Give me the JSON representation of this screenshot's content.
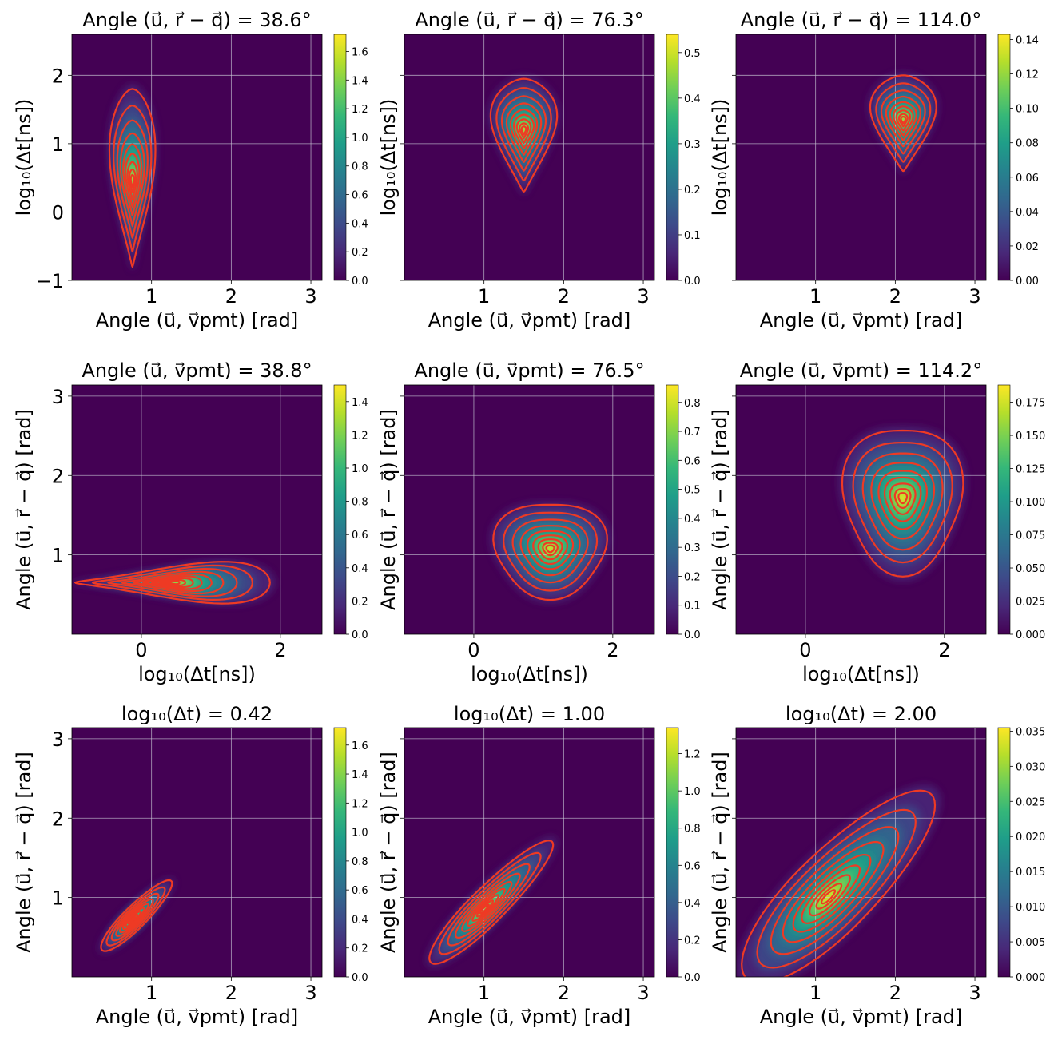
{
  "figure": {
    "description_hidden": false
  },
  "colors": {
    "contour": "#ee3a24",
    "grid": "#c9c9d6",
    "viridis": [
      "#440154",
      "#482878",
      "#3e4989",
      "#31688e",
      "#26828e",
      "#1f9e89",
      "#35b779",
      "#6ece58",
      "#b5de2b",
      "#fde725"
    ]
  },
  "chart_data": [
    {
      "type": "heatmap",
      "id": "p1",
      "title": "Angle (u⃗, r⃗ − q⃗) = 38.6°",
      "xlabel": "Angle (u⃗, v⃗pmt) [rad]",
      "ylabel": "log₁₀(Δt[ns])",
      "xlim": [
        0,
        3.14
      ],
      "ylim": [
        -1,
        2.6
      ],
      "xticks": [
        1,
        2,
        3
      ],
      "yticks": [
        -1,
        0,
        1,
        2
      ],
      "ytick_labels_shown": true,
      "colorbar": {
        "min": 0.0,
        "max": 1.72,
        "ticks": [
          "0.0",
          "0.2",
          "0.4",
          "0.6",
          "0.8",
          "1.0",
          "1.2",
          "1.4",
          "1.6"
        ],
        "tick_values": [
          0,
          0.2,
          0.4,
          0.6,
          0.8,
          1.0,
          1.2,
          1.4,
          1.6
        ]
      },
      "peak": {
        "x": 0.76,
        "y": 0.45
      },
      "blob": {
        "shape": "teardrop",
        "x_spread_top": 0.42,
        "x_spread_bottom": 0.05,
        "y_bottom": -0.8,
        "y_top": 1.8
      }
    },
    {
      "type": "heatmap",
      "id": "p2",
      "title": "Angle (u⃗, r⃗ − q⃗) = 76.3°",
      "xlabel": "Angle (u⃗, v⃗pmt) [rad]",
      "ylabel": "log₁₀(Δt[ns])",
      "xlim": [
        0,
        3.14
      ],
      "ylim": [
        -1,
        2.6
      ],
      "xticks": [
        1,
        2,
        3
      ],
      "yticks": [
        -1,
        0,
        1,
        2
      ],
      "ytick_labels_shown": false,
      "colorbar": {
        "min": 0.0,
        "max": 0.54,
        "ticks": [
          "0.0",
          "0.1",
          "0.2",
          "0.3",
          "0.4",
          "0.5"
        ],
        "tick_values": [
          0,
          0.1,
          0.2,
          0.3,
          0.4,
          0.5
        ]
      },
      "peak": {
        "x": 1.5,
        "y": 1.2
      },
      "blob": {
        "shape": "teardrop",
        "x_spread_top": 0.57,
        "x_spread_bottom": 0.1,
        "y_bottom": 0.3,
        "y_top": 1.95
      }
    },
    {
      "type": "heatmap",
      "id": "p3",
      "title": "Angle (u⃗, r⃗ − q⃗) = 114.0°",
      "xlabel": "Angle (u⃗, v⃗pmt) [rad]",
      "ylabel": "log₁₀(Δt[ns])",
      "xlim": [
        0,
        3.14
      ],
      "ylim": [
        -1,
        2.6
      ],
      "xticks": [
        1,
        2,
        3
      ],
      "yticks": [
        -1,
        0,
        1,
        2
      ],
      "ytick_labels_shown": false,
      "colorbar": {
        "min": 0.0,
        "max": 0.143,
        "ticks": [
          "0.00",
          "0.02",
          "0.04",
          "0.06",
          "0.08",
          "0.10",
          "0.12",
          "0.14"
        ],
        "tick_values": [
          0,
          0.02,
          0.04,
          0.06,
          0.08,
          0.1,
          0.12,
          0.14
        ]
      },
      "peak": {
        "x": 2.1,
        "y": 1.35
      },
      "blob": {
        "shape": "teardrop",
        "x_spread_top": 0.57,
        "x_spread_bottom": 0.1,
        "y_bottom": 0.6,
        "y_top": 2.0
      }
    },
    {
      "type": "heatmap",
      "id": "p4",
      "title": "Angle (u⃗, v⃗pmt) = 38.8°",
      "xlabel": "log₁₀(Δt[ns])",
      "ylabel": "Angle (u⃗, r⃗ − q⃗) [rad]",
      "xlim": [
        -1,
        2.6
      ],
      "ylim": [
        0,
        3.14
      ],
      "xticks": [
        0,
        2
      ],
      "yticks": [
        1,
        2,
        3
      ],
      "ytick_labels_shown": true,
      "colorbar": {
        "min": 0.0,
        "max": 1.5,
        "ticks": [
          "0.0",
          "0.2",
          "0.4",
          "0.6",
          "0.8",
          "1.0",
          "1.2",
          "1.4"
        ],
        "tick_values": [
          0,
          0.2,
          0.4,
          0.6,
          0.8,
          1.0,
          1.2,
          1.4
        ]
      },
      "peak": {
        "x": 0.45,
        "y": 0.65
      },
      "blob": {
        "shape": "horizontal_wedge",
        "x_left": -0.95,
        "x_right": 1.85,
        "y_spread_right": 0.42,
        "y_spread_left": 0.05
      }
    },
    {
      "type": "heatmap",
      "id": "p5",
      "title": "Angle (u⃗, v⃗pmt) = 76.5°",
      "xlabel": "log₁₀(Δt[ns])",
      "ylabel": "Angle (u⃗, r⃗ − q⃗) [rad]",
      "xlim": [
        -1,
        2.6
      ],
      "ylim": [
        0,
        3.14
      ],
      "xticks": [
        0,
        2
      ],
      "yticks": [
        1,
        2,
        3
      ],
      "ytick_labels_shown": false,
      "colorbar": {
        "min": 0.0,
        "max": 0.86,
        "ticks": [
          "0.0",
          "0.1",
          "0.2",
          "0.3",
          "0.4",
          "0.5",
          "0.6",
          "0.7",
          "0.8"
        ],
        "tick_values": [
          0,
          0.1,
          0.2,
          0.3,
          0.4,
          0.5,
          0.6,
          0.7,
          0.8
        ]
      },
      "peak": {
        "x": 1.1,
        "y": 1.08
      },
      "blob": {
        "shape": "ellipse",
        "x_spread": 0.8,
        "y_spread": 0.6
      }
    },
    {
      "type": "heatmap",
      "id": "p6",
      "title": "Angle (u⃗, v⃗pmt) = 114.2°",
      "xlabel": "log₁₀(Δt[ns])",
      "ylabel": "Angle (u⃗, r⃗ − q⃗) [rad]",
      "xlim": [
        -1,
        2.6
      ],
      "ylim": [
        0,
        3.14
      ],
      "xticks": [
        0,
        2
      ],
      "yticks": [
        1,
        2,
        3
      ],
      "ytick_labels_shown": false,
      "colorbar": {
        "min": 0.0,
        "max": 0.188,
        "ticks": [
          "0.000",
          "0.025",
          "0.050",
          "0.075",
          "0.100",
          "0.125",
          "0.150",
          "0.175"
        ],
        "tick_values": [
          0,
          0.025,
          0.05,
          0.075,
          0.1,
          0.125,
          0.15,
          0.175
        ]
      },
      "peak": {
        "x": 1.4,
        "y": 1.72
      },
      "blob": {
        "shape": "ellipse",
        "x_spread": 0.85,
        "y_spread": 0.92
      }
    },
    {
      "type": "heatmap",
      "id": "p7",
      "title": "log₁₀(Δt) = 0.42",
      "xlabel": "Angle (u⃗, v⃗pmt) [rad]",
      "ylabel": "Angle (u⃗, r⃗ − q⃗) [rad]",
      "xlim": [
        0,
        3.14
      ],
      "ylim": [
        0,
        3.14
      ],
      "xticks": [
        1,
        2,
        3
      ],
      "yticks": [
        1,
        2,
        3
      ],
      "ytick_labels_shown": true,
      "colorbar": {
        "min": 0.0,
        "max": 1.72,
        "ticks": [
          "0.0",
          "0.2",
          "0.4",
          "0.6",
          "0.8",
          "1.0",
          "1.2",
          "1.4",
          "1.6"
        ],
        "tick_values": [
          0,
          0.2,
          0.4,
          0.6,
          0.8,
          1.0,
          1.2,
          1.4,
          1.6
        ]
      },
      "peak": {
        "x": 0.76,
        "y": 0.72
      },
      "blob": {
        "shape": "diagonal",
        "along": 0.6,
        "across": 0.14
      }
    },
    {
      "type": "heatmap",
      "id": "p8",
      "title": "log₁₀(Δt) = 1.00",
      "xlabel": "Angle (u⃗, v⃗pmt) [rad]",
      "ylabel": "Angle (u⃗, r⃗ − q⃗) [rad]",
      "xlim": [
        0,
        3.14
      ],
      "ylim": [
        0,
        3.14
      ],
      "xticks": [
        1,
        2,
        3
      ],
      "yticks": [
        1,
        2,
        3
      ],
      "ytick_labels_shown": false,
      "colorbar": {
        "min": 0.0,
        "max": 1.34,
        "ticks": [
          "0.0",
          "0.2",
          "0.4",
          "0.6",
          "0.8",
          "1.0",
          "1.2"
        ],
        "tick_values": [
          0,
          0.2,
          0.4,
          0.6,
          0.8,
          1.0,
          1.2
        ]
      },
      "peak": {
        "x": 1.0,
        "y": 0.85
      },
      "blob": {
        "shape": "diagonal",
        "along": 1.05,
        "across": 0.22
      }
    },
    {
      "type": "heatmap",
      "id": "p9",
      "title": "log₁₀(Δt) = 2.00",
      "xlabel": "Angle (u⃗, v⃗pmt) [rad]",
      "ylabel": "Angle (u⃗, r⃗ − q⃗) [rad]",
      "xlim": [
        0,
        3.14
      ],
      "ylim": [
        0,
        3.14
      ],
      "xticks": [
        1,
        2,
        3
      ],
      "yticks": [
        1,
        2,
        3
      ],
      "ytick_labels_shown": false,
      "colorbar": {
        "min": 0.0,
        "max": 0.0355,
        "ticks": [
          "0.000",
          "0.005",
          "0.010",
          "0.015",
          "0.020",
          "0.025",
          "0.030",
          "0.035"
        ],
        "tick_values": [
          0,
          0.005,
          0.01,
          0.015,
          0.02,
          0.025,
          0.03,
          0.035
        ]
      },
      "peak": {
        "x": 1.15,
        "y": 1.0
      },
      "blob": {
        "shape": "diagonal",
        "along": 1.6,
        "across": 0.5
      }
    }
  ]
}
